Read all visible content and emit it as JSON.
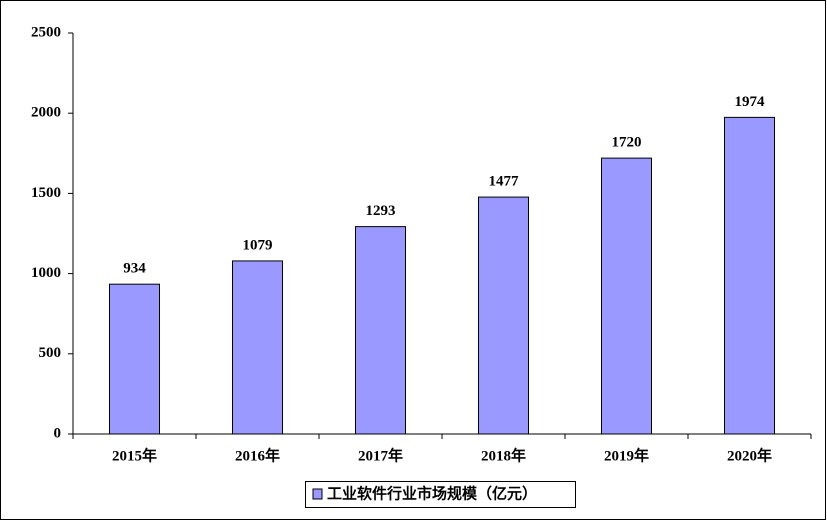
{
  "chart_data": {
    "type": "bar",
    "categories": [
      "2015年",
      "2016年",
      "2017年",
      "2018年",
      "2019年",
      "2020年"
    ],
    "series": [
      {
        "name": "工业软件行业市场规模（亿元）",
        "color": "#9999ff",
        "values": [
          934,
          1079,
          1293,
          1477,
          1720,
          1974
        ]
      }
    ],
    "ylim": [
      0,
      2500
    ],
    "yticks": [
      0,
      500,
      1000,
      1500,
      2000,
      2500
    ],
    "grid": false,
    "legend": "bottom",
    "data_labels": true
  }
}
